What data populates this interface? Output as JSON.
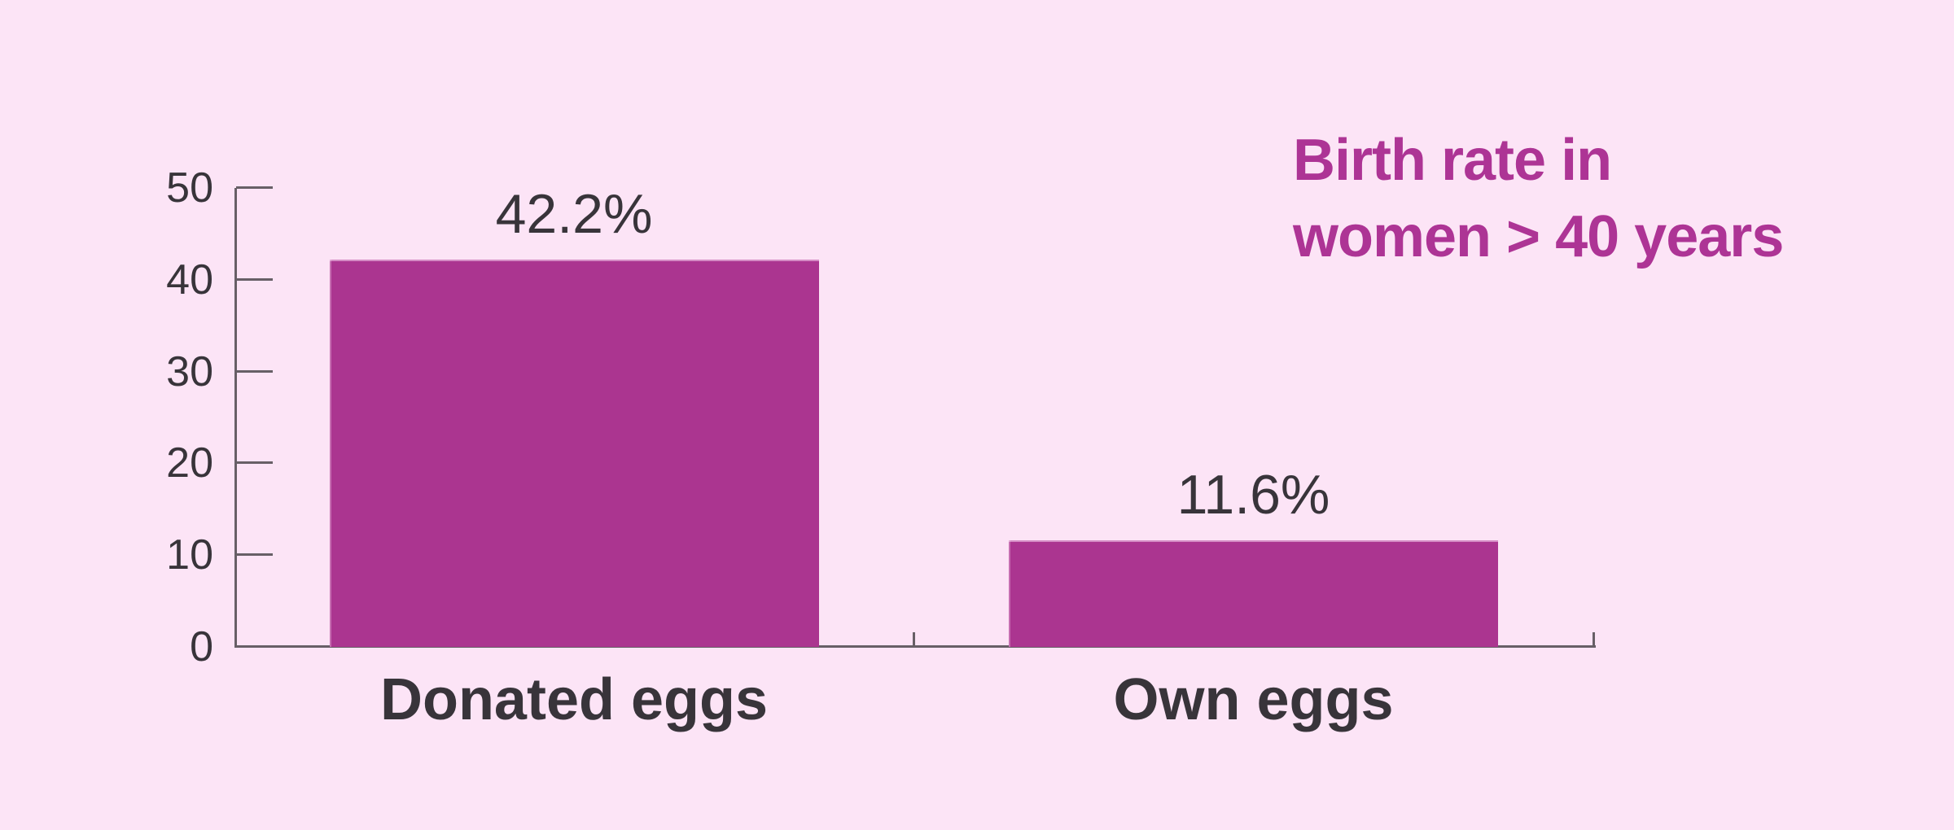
{
  "title": {
    "line1": "Birth rate in",
    "line2": "women > 40 years"
  },
  "colors": {
    "background": "#fce4f6",
    "bar": "#ab3590",
    "title_text": "#ad3495",
    "axis": "#675f66",
    "label_text": "#38343a"
  },
  "chart_data": {
    "type": "bar",
    "title": "Birth rate in women > 40 years",
    "categories": [
      "Donated eggs",
      "Own eggs"
    ],
    "values": [
      42.2,
      11.6
    ],
    "value_labels": [
      "42.2%",
      "11.6%"
    ],
    "xlabel": "",
    "ylabel": "",
    "ylim": [
      0,
      50
    ],
    "yticks": [
      0,
      10,
      20,
      30,
      40,
      50
    ],
    "grid": false,
    "legend": false,
    "bar_color": "#ab3590",
    "layout_hints": {
      "value_labels_position": "above-bars",
      "y_ticks_direction": "inward-right",
      "title_position": "top-right"
    }
  }
}
